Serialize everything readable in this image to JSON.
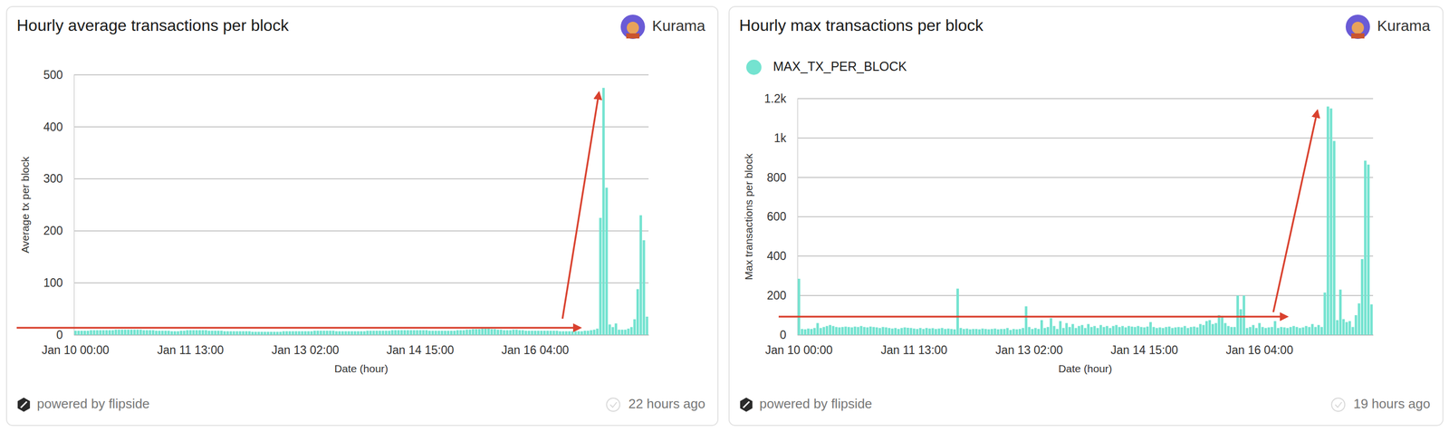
{
  "chart_data": [
    {
      "type": "bar",
      "title": "Hourly average transactions per block",
      "author": "Kurama",
      "x_label": "Date (hour)",
      "y_label": "Average tx per block",
      "categories": [
        "Jan 10 00:00",
        null,
        null,
        null,
        null,
        null,
        null,
        null,
        null,
        null,
        null,
        null,
        null,
        null,
        null,
        null,
        null,
        null,
        null,
        null,
        null,
        null,
        null,
        null,
        null,
        null,
        null,
        null,
        null,
        null,
        null,
        null,
        null,
        null,
        null,
        null,
        null,
        "Jan 11 13:00",
        null,
        null,
        null,
        null,
        null,
        null,
        null,
        null,
        null,
        null,
        null,
        null,
        null,
        null,
        null,
        null,
        null,
        null,
        null,
        null,
        null,
        null,
        null,
        null,
        null,
        null,
        null,
        null,
        null,
        null,
        null,
        null,
        null,
        null,
        null,
        null,
        "Jan 13 02:00",
        null,
        null,
        null,
        null,
        null,
        null,
        null,
        null,
        null,
        null,
        null,
        null,
        null,
        null,
        null,
        null,
        null,
        null,
        null,
        null,
        null,
        null,
        null,
        null,
        null,
        null,
        null,
        null,
        null,
        null,
        null,
        null,
        null,
        null,
        null,
        null,
        "Jan 14 15:00",
        null,
        null,
        null,
        null,
        null,
        null,
        null,
        null,
        null,
        null,
        null,
        null,
        null,
        null,
        null,
        null,
        null,
        null,
        null,
        null,
        null,
        null,
        null,
        null,
        null,
        null,
        null,
        null,
        null,
        null,
        null,
        null,
        null,
        null,
        null,
        null,
        "Jan 16 04:00",
        null,
        null,
        null,
        null,
        null,
        null,
        null,
        null,
        null,
        null,
        null,
        null,
        null,
        null,
        null,
        null,
        null,
        null,
        null,
        null,
        null,
        null,
        null,
        null,
        null,
        null,
        null,
        null,
        null,
        null,
        null,
        null,
        null,
        null,
        null,
        null
      ],
      "values": [
        8,
        8,
        8,
        8,
        8,
        9,
        9,
        9,
        9,
        9,
        9,
        9,
        9,
        10,
        10,
        10,
        10,
        10,
        10,
        10,
        10,
        10,
        9,
        9,
        9,
        9,
        8,
        8,
        8,
        8,
        8,
        7,
        7,
        7,
        8,
        8,
        9,
        9,
        9,
        9,
        9,
        9,
        9,
        8,
        8,
        8,
        8,
        8,
        7,
        7,
        7,
        7,
        7,
        7,
        7,
        7,
        7,
        6,
        6,
        6,
        6,
        6,
        6,
        6,
        6,
        6,
        6,
        7,
        7,
        7,
        7,
        7,
        7,
        7,
        7,
        7,
        7,
        8,
        8,
        8,
        8,
        8,
        8,
        8,
        7,
        7,
        7,
        7,
        7,
        7,
        7,
        7,
        7,
        7,
        8,
        8,
        8,
        8,
        8,
        8,
        8,
        8,
        9,
        9,
        9,
        9,
        9,
        9,
        9,
        9,
        9,
        9,
        9,
        9,
        8,
        8,
        8,
        8,
        8,
        8,
        8,
        8,
        8,
        9,
        9,
        9,
        10,
        10,
        11,
        11,
        11,
        12,
        12,
        12,
        11,
        11,
        10,
        10,
        9,
        9,
        9,
        10,
        10,
        9,
        9,
        8,
        8,
        8,
        8,
        8,
        8,
        8,
        8,
        8,
        8,
        8,
        7,
        7,
        7,
        7,
        7,
        7,
        7,
        7,
        8,
        8,
        9,
        10,
        12,
        225,
        475,
        283,
        20,
        15,
        22,
        10,
        10,
        10,
        12,
        15,
        30,
        88,
        230,
        182,
        35
      ],
      "color": "#74e3d0",
      "ylim": [
        0,
        500
      ],
      "yticks": [
        0,
        100,
        200,
        300,
        400,
        500
      ],
      "grid": true,
      "source": "powered by flipside",
      "updated": "22 hours ago"
    },
    {
      "type": "bar",
      "title": "Hourly max transactions per block",
      "author": "Kurama",
      "x_label": "Date (hour)",
      "y_label": "Max transactions per block",
      "categories": [
        "Jan 10 00:00",
        null,
        null,
        null,
        null,
        null,
        null,
        null,
        null,
        null,
        null,
        null,
        null,
        null,
        null,
        null,
        null,
        null,
        null,
        null,
        null,
        null,
        null,
        null,
        null,
        null,
        null,
        null,
        null,
        null,
        null,
        null,
        null,
        null,
        null,
        null,
        null,
        "Jan 11 13:00",
        null,
        null,
        null,
        null,
        null,
        null,
        null,
        null,
        null,
        null,
        null,
        null,
        null,
        null,
        null,
        null,
        null,
        null,
        null,
        null,
        null,
        null,
        null,
        null,
        null,
        null,
        null,
        null,
        null,
        null,
        null,
        null,
        null,
        null,
        null,
        null,
        "Jan 13 02:00",
        null,
        null,
        null,
        null,
        null,
        null,
        null,
        null,
        null,
        null,
        null,
        null,
        null,
        null,
        null,
        null,
        null,
        null,
        null,
        null,
        null,
        null,
        null,
        null,
        null,
        null,
        null,
        null,
        null,
        null,
        null,
        null,
        null,
        null,
        null,
        null,
        "Jan 14 15:00",
        null,
        null,
        null,
        null,
        null,
        null,
        null,
        null,
        null,
        null,
        null,
        null,
        null,
        null,
        null,
        null,
        null,
        null,
        null,
        null,
        null,
        null,
        null,
        null,
        null,
        null,
        null,
        null,
        null,
        null,
        null,
        null,
        null,
        null,
        null,
        null,
        "Jan 16 04:00",
        null,
        null,
        null,
        null,
        null,
        null,
        null,
        null,
        null,
        null,
        null,
        null,
        null,
        null,
        null,
        null,
        null,
        null,
        null,
        null,
        null,
        null,
        null,
        null,
        null,
        null,
        null,
        null,
        null,
        null,
        null,
        null,
        null,
        null,
        null,
        null
      ],
      "series": [
        {
          "name": "MAX_TX_PER_BLOCK",
          "color": "#74e3d0",
          "values": [
            285,
            30,
            28,
            32,
            30,
            35,
            60,
            35,
            40,
            45,
            50,
            45,
            40,
            38,
            40,
            42,
            40,
            38,
            42,
            40,
            45,
            40,
            38,
            42,
            40,
            38,
            35,
            40,
            38,
            35,
            32,
            35,
            30,
            35,
            38,
            36,
            35,
            32,
            30,
            35,
            30,
            35,
            32,
            34,
            30,
            32,
            35,
            30,
            32,
            30,
            28,
            235,
            35,
            30,
            32,
            28,
            30,
            30,
            28,
            32,
            30,
            28,
            30,
            32,
            28,
            30,
            30,
            35,
            25,
            30,
            28,
            30,
            35,
            145,
            40,
            30,
            35,
            30,
            75,
            35,
            40,
            85,
            45,
            30,
            70,
            35,
            60,
            40,
            55,
            35,
            45,
            50,
            35,
            55,
            40,
            45,
            35,
            50,
            40,
            45,
            35,
            45,
            50,
            40,
            45,
            38,
            45,
            42,
            40,
            45,
            40,
            38,
            42,
            65,
            40,
            35,
            38,
            35,
            40,
            42,
            35,
            38,
            40,
            38,
            45,
            35,
            40,
            42,
            38,
            55,
            50,
            70,
            75,
            55,
            60,
            100,
            90,
            60,
            45,
            40,
            40,
            200,
            130,
            200,
            35,
            40,
            50,
            35,
            60,
            40,
            35,
            38,
            40,
            70,
            35,
            40,
            38,
            35,
            40,
            45,
            40,
            35,
            38,
            45,
            40,
            55,
            40,
            50,
            40,
            215,
            1160,
            1150,
            985,
            75,
            230,
            80,
            65,
            70,
            40,
            100,
            160,
            385,
            885,
            865,
            155
          ]
        }
      ],
      "ylim": [
        0,
        1200
      ],
      "yticks": [
        0,
        200,
        400,
        600,
        800,
        {
          "value": 1000,
          "label": "1k"
        },
        {
          "value": 1200,
          "label": "1.2k"
        }
      ],
      "grid": true,
      "legend": "top-left",
      "source": "powered by flipside",
      "updated": "19 hours ago"
    }
  ]
}
